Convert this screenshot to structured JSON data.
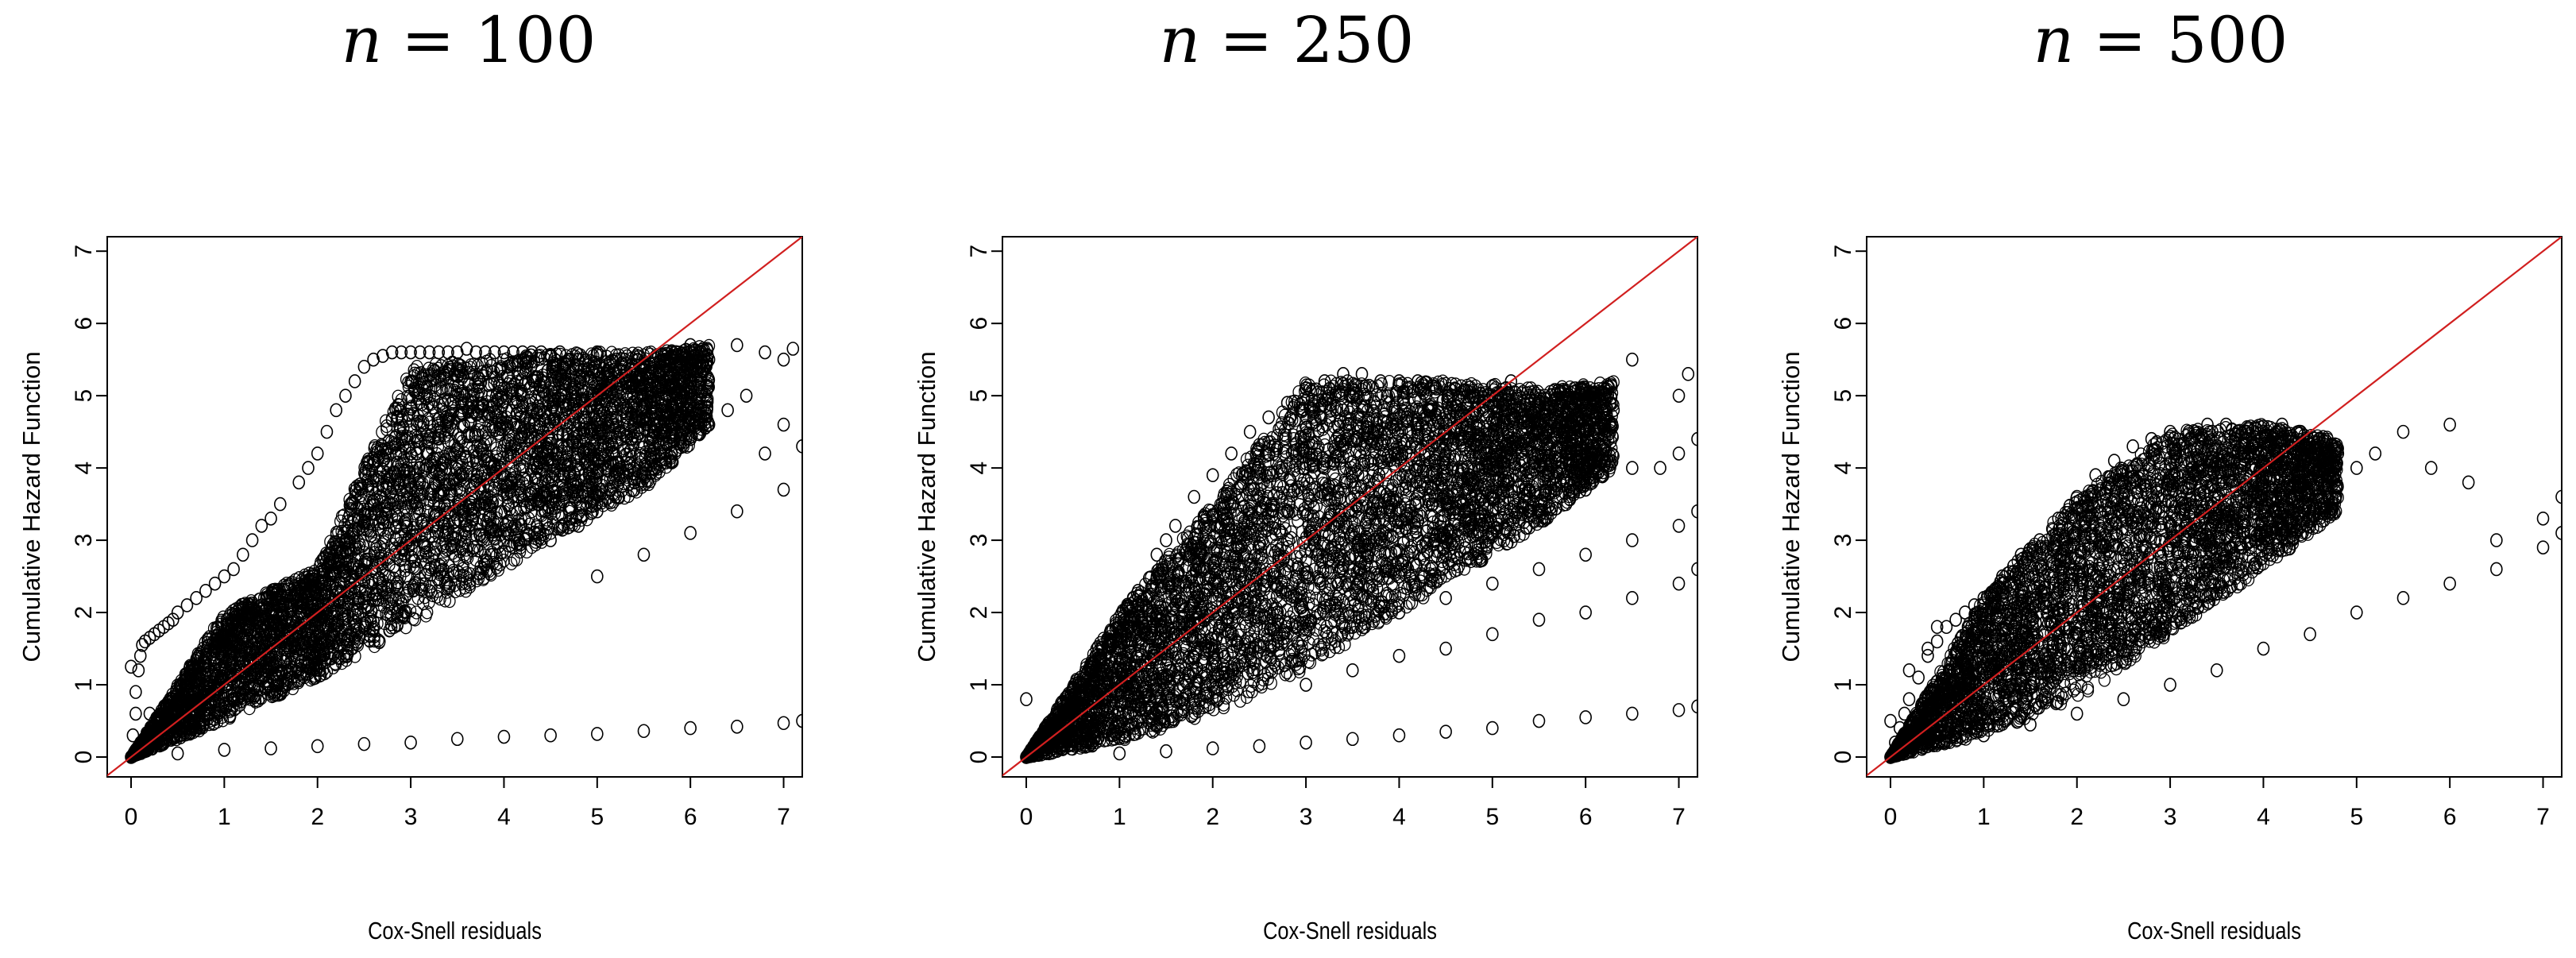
{
  "chart_data": [
    {
      "type": "scatter",
      "title": "n = 100",
      "title_var": "n",
      "title_eq": "= 100",
      "xlabel": "Cox-Snell residuals",
      "ylabel": "Cumulative Hazard Function",
      "xlim": [
        0,
        7.2
      ],
      "ylim": [
        0,
        7.2
      ],
      "xticks": [
        "0",
        "1",
        "2",
        "3",
        "4",
        "5",
        "6",
        "7"
      ],
      "yticks": [
        "0",
        "1",
        "2",
        "3",
        "4",
        "5",
        "6",
        "7"
      ],
      "reference_line": {
        "slope": 1,
        "intercept": 0,
        "color": "#d11f1f"
      },
      "marker": "open-circle",
      "marker_color": "#000000",
      "grid": false,
      "series": [
        {
          "x": [
            0.0,
            0.02,
            0.05,
            0.05,
            0.08,
            0.1,
            0.12,
            0.15,
            0.2,
            0.2,
            0.25,
            0.3,
            0.3,
            0.35,
            0.4,
            0.45,
            0.5,
            0.5,
            0.6,
            0.6,
            0.7,
            0.8,
            0.8,
            0.9,
            1.0,
            1.0,
            1.1,
            1.2,
            1.3,
            1.4,
            1.5,
            1.5,
            1.6,
            1.8,
            1.9,
            2.0,
            2.1,
            2.2,
            2.3,
            2.4,
            2.5,
            2.6,
            2.7,
            2.8,
            2.9,
            3.0,
            3.0,
            3.1,
            3.2,
            3.3,
            3.4,
            3.5,
            3.6,
            3.7,
            3.8,
            3.9,
            4.0,
            4.1,
            4.2,
            4.3,
            4.4,
            4.5,
            4.6,
            4.8,
            5.0,
            5.2,
            5.5,
            5.8,
            6.0,
            6.2,
            6.5,
            6.8,
            7.0,
            7.1,
            0.5,
            1.0,
            1.5,
            2.0,
            2.5,
            3.0,
            3.5,
            4.0,
            4.5,
            5.0,
            5.5,
            6.0,
            6.5,
            7.0,
            7.2,
            0.0
          ],
          "y": [
            0.0,
            0.3,
            0.6,
            0.9,
            1.2,
            1.4,
            1.55,
            1.6,
            1.65,
            0.6,
            1.7,
            1.75,
            0.5,
            1.8,
            1.85,
            1.9,
            2.0,
            0.8,
            2.1,
            1.0,
            2.2,
            2.3,
            1.3,
            2.4,
            2.5,
            1.6,
            2.6,
            2.8,
            3.0,
            3.2,
            3.3,
            2.0,
            3.5,
            3.8,
            4.0,
            4.2,
            4.5,
            4.8,
            5.0,
            5.2,
            5.4,
            5.5,
            5.55,
            5.6,
            5.6,
            5.6,
            4.2,
            5.6,
            5.6,
            5.6,
            5.6,
            5.6,
            5.65,
            5.6,
            5.6,
            5.6,
            5.6,
            5.6,
            5.6,
            5.6,
            5.6,
            5.55,
            5.6,
            5.5,
            5.6,
            5.5,
            5.4,
            5.6,
            5.7,
            5.5,
            5.7,
            5.6,
            5.5,
            5.65,
            0.05,
            0.1,
            0.12,
            0.15,
            0.18,
            0.2,
            0.25,
            0.28,
            0.3,
            0.32,
            0.36,
            0.4,
            0.42,
            0.47,
            0.5,
            1.25
          ]
        },
        {
          "x": [
            4.5,
            4.8,
            5.0,
            5.2,
            5.4,
            5.6,
            5.8,
            6.0,
            6.2,
            6.4,
            6.6,
            6.8,
            7.0,
            7.2,
            5.0,
            5.5,
            6.0,
            6.5,
            7.0
          ],
          "y": [
            3.0,
            3.2,
            3.4,
            3.6,
            3.8,
            4.0,
            4.2,
            4.4,
            4.6,
            4.8,
            5.0,
            4.2,
            4.6,
            4.3,
            2.5,
            2.8,
            3.1,
            3.4,
            3.7
          ]
        }
      ],
      "cloud": [
        {
          "x0": 0.0,
          "x1": 1.0,
          "ylo": [
            0.0,
            0.5
          ],
          "yhi": [
            0.0,
            2.0
          ]
        },
        {
          "x0": 1.0,
          "x1": 2.0,
          "ylo": [
            0.5,
            1.1
          ],
          "yhi": [
            2.0,
            2.6
          ]
        },
        {
          "x0": 2.0,
          "x1": 3.0,
          "ylo": [
            1.1,
            1.8
          ],
          "yhi": [
            2.6,
            5.4
          ]
        },
        {
          "x0": 3.0,
          "x1": 4.5,
          "ylo": [
            1.8,
            3.0
          ],
          "yhi": [
            5.4,
            5.6
          ]
        },
        {
          "x0": 4.5,
          "x1": 5.6,
          "ylo": [
            3.0,
            3.8
          ],
          "yhi": [
            5.6,
            5.6
          ]
        },
        {
          "x0": 5.6,
          "x1": 6.2,
          "ylo": [
            3.8,
            4.6
          ],
          "yhi": [
            5.6,
            5.7
          ]
        }
      ]
    },
    {
      "type": "scatter",
      "title": "n = 250",
      "title_var": "n",
      "title_eq": "= 250",
      "xlabel": "Cox-Snell residuals",
      "ylabel": "Cumulative Hazard Function",
      "xlim": [
        0,
        7.2
      ],
      "ylim": [
        0,
        7.2
      ],
      "xticks": [
        "0",
        "1",
        "2",
        "3",
        "4",
        "5",
        "6",
        "7"
      ],
      "yticks": [
        "0",
        "1",
        "2",
        "3",
        "4",
        "5",
        "6",
        "7"
      ],
      "reference_line": {
        "slope": 1,
        "intercept": 0,
        "color": "#d11f1f"
      },
      "marker": "open-circle",
      "marker_color": "#000000",
      "grid": false,
      "series": [
        {
          "x": [
            0.0,
            0.05,
            0.1,
            0.2,
            0.3,
            0.4,
            0.5,
            0.6,
            0.7,
            0.8,
            0.9,
            1.0,
            1.2,
            1.4,
            1.5,
            1.6,
            1.8,
            2.0,
            2.2,
            2.4,
            2.6,
            2.8,
            3.0,
            3.2,
            3.4,
            3.6,
            3.8,
            4.0,
            4.2,
            4.4,
            4.6,
            4.8,
            5.0,
            5.2,
            5.5,
            5.8,
            6.0,
            6.3,
            6.5,
            6.8,
            7.0,
            7.1,
            0.0,
            1.0,
            1.5,
            2.0,
            2.5,
            3.0,
            3.5,
            4.0,
            4.5,
            5.0,
            5.5,
            6.0,
            6.5,
            7.0,
            7.2
          ],
          "y": [
            0.0,
            0.1,
            0.2,
            0.4,
            0.5,
            0.6,
            0.8,
            1.0,
            1.2,
            1.4,
            1.6,
            1.8,
            2.3,
            2.8,
            3.0,
            3.2,
            3.6,
            3.9,
            4.2,
            4.5,
            4.7,
            4.9,
            5.1,
            5.2,
            5.3,
            5.3,
            5.2,
            5.2,
            5.2,
            5.1,
            5.1,
            5.0,
            5.0,
            5.2,
            4.8,
            5.0,
            4.5,
            4.8,
            5.5,
            4.0,
            5.0,
            5.3,
            0.8,
            0.05,
            0.08,
            0.12,
            0.15,
            0.2,
            0.25,
            0.3,
            0.35,
            0.4,
            0.5,
            0.55,
            0.6,
            0.65,
            0.7
          ]
        },
        {
          "x": [
            4.0,
            4.5,
            5.0,
            5.5,
            6.0,
            6.5,
            7.0,
            7.2,
            3.5,
            4.0,
            4.5,
            5.0,
            5.5,
            6.0,
            6.5,
            7.0,
            7.2,
            3.0,
            3.5,
            4.0,
            4.5,
            5.0,
            5.5,
            6.0,
            6.5,
            7.0,
            7.2
          ],
          "y": [
            2.5,
            2.8,
            3.1,
            3.4,
            3.7,
            4.0,
            4.2,
            4.4,
            1.8,
            2.0,
            2.2,
            2.4,
            2.6,
            2.8,
            3.0,
            3.2,
            3.4,
            1.0,
            1.2,
            1.4,
            1.5,
            1.7,
            1.9,
            2.0,
            2.2,
            2.4,
            2.6
          ]
        }
      ],
      "cloud": [
        {
          "x0": 0.0,
          "x1": 1.0,
          "ylo": [
            0.0,
            0.2
          ],
          "yhi": [
            0.0,
            2.0
          ]
        },
        {
          "x0": 1.0,
          "x1": 2.0,
          "ylo": [
            0.2,
            0.6
          ],
          "yhi": [
            2.0,
            3.5
          ]
        },
        {
          "x0": 2.0,
          "x1": 3.0,
          "ylo": [
            0.6,
            1.2
          ],
          "yhi": [
            3.5,
            5.2
          ]
        },
        {
          "x0": 3.0,
          "x1": 4.5,
          "ylo": [
            1.2,
            2.4
          ],
          "yhi": [
            5.2,
            5.2
          ]
        },
        {
          "x0": 4.5,
          "x1": 5.6,
          "ylo": [
            2.4,
            3.3
          ],
          "yhi": [
            5.2,
            5.1
          ]
        },
        {
          "x0": 5.6,
          "x1": 6.3,
          "ylo": [
            3.3,
            4.0
          ],
          "yhi": [
            5.1,
            5.2
          ]
        }
      ]
    },
    {
      "type": "scatter",
      "title": "n = 500",
      "title_var": "n",
      "title_eq": "= 500",
      "xlabel": "Cox-Snell residuals",
      "ylabel": "Cumulative Hazard Function",
      "xlim": [
        0,
        7.2
      ],
      "ylim": [
        0,
        7.2
      ],
      "xticks": [
        "0",
        "1",
        "2",
        "3",
        "4",
        "5",
        "6",
        "7"
      ],
      "yticks": [
        "0",
        "1",
        "2",
        "3",
        "4",
        "5",
        "6",
        "7"
      ],
      "reference_line": {
        "slope": 1,
        "intercept": 0,
        "color": "#d11f1f"
      },
      "marker": "open-circle",
      "marker_color": "#000000",
      "grid": false,
      "series": [
        {
          "x": [
            0.0,
            0.05,
            0.1,
            0.15,
            0.2,
            0.3,
            0.4,
            0.5,
            0.6,
            0.7,
            0.8,
            0.9,
            1.0,
            1.2,
            1.4,
            1.6,
            1.8,
            2.0,
            2.2,
            2.4,
            2.6,
            2.8,
            3.0,
            3.2,
            3.4,
            3.6,
            3.8,
            4.0,
            4.2,
            4.4,
            4.6,
            4.8,
            5.0,
            5.2,
            5.5,
            5.8,
            6.0,
            6.2,
            6.5,
            7.0,
            7.2,
            0.0,
            0.2,
            0.4,
            0.5,
            0.6
          ],
          "y": [
            0.0,
            0.2,
            0.4,
            0.6,
            0.8,
            1.1,
            1.4,
            1.6,
            1.8,
            1.9,
            2.0,
            2.1,
            2.2,
            2.5,
            2.8,
            3.0,
            3.3,
            3.6,
            3.9,
            4.1,
            4.3,
            4.4,
            4.5,
            4.5,
            4.6,
            4.6,
            4.5,
            4.5,
            4.6,
            4.5,
            4.4,
            4.2,
            4.0,
            4.2,
            4.5,
            4.0,
            4.6,
            3.8,
            3.0,
            3.3,
            3.6,
            0.5,
            1.2,
            1.5,
            1.8,
            0.3
          ]
        },
        {
          "x": [
            1.0,
            1.5,
            2.0,
            2.5,
            3.0,
            3.5,
            4.0,
            4.5,
            5.0,
            5.5,
            6.0,
            6.5,
            7.0,
            7.2
          ],
          "y": [
            0.3,
            0.45,
            0.6,
            0.8,
            1.0,
            1.2,
            1.5,
            1.7,
            2.0,
            2.2,
            2.4,
            2.6,
            2.9,
            3.1
          ]
        }
      ],
      "cloud": [
        {
          "x0": 0.0,
          "x1": 1.0,
          "ylo": [
            0.0,
            0.3
          ],
          "yhi": [
            0.0,
            2.2
          ]
        },
        {
          "x0": 1.0,
          "x1": 2.0,
          "ylo": [
            0.3,
            0.8
          ],
          "yhi": [
            2.2,
            3.6
          ]
        },
        {
          "x0": 2.0,
          "x1": 3.0,
          "ylo": [
            0.8,
            1.7
          ],
          "yhi": [
            3.6,
            4.5
          ]
        },
        {
          "x0": 3.0,
          "x1": 4.0,
          "ylo": [
            1.7,
            2.6
          ],
          "yhi": [
            4.5,
            4.6
          ]
        },
        {
          "x0": 4.0,
          "x1": 4.8,
          "ylo": [
            2.6,
            3.4
          ],
          "yhi": [
            4.6,
            4.4
          ]
        }
      ]
    }
  ]
}
